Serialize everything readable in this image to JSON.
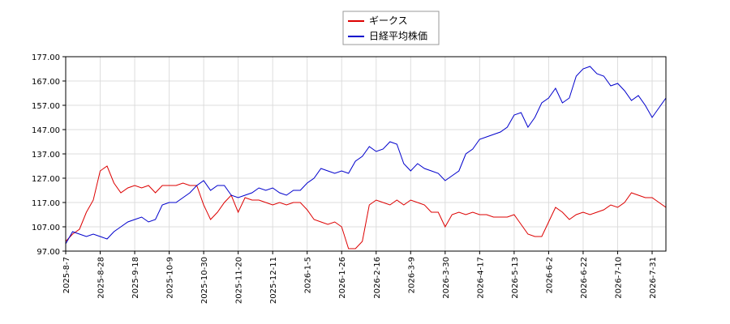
{
  "chart_data": {
    "type": "line",
    "categories": [
      "2025-8-7",
      null,
      null,
      null,
      null,
      "2025-8-28",
      null,
      null,
      null,
      null,
      "2025-9-18",
      null,
      null,
      null,
      null,
      "2025-10-9",
      null,
      null,
      null,
      null,
      "2025-10-30",
      null,
      null,
      null,
      null,
      "2025-11-20",
      null,
      null,
      null,
      null,
      "2025-12-11",
      null,
      null,
      null,
      null,
      "2026-1-5",
      null,
      null,
      null,
      null,
      "2026-1-26",
      null,
      null,
      null,
      null,
      "2026-2-16",
      null,
      null,
      null,
      null,
      "2026-3-9",
      null,
      null,
      null,
      null,
      "2026-3-30",
      null,
      null,
      null,
      null,
      "2026-4-17",
      null,
      null,
      null,
      null,
      "2026-5-13",
      null,
      null,
      null,
      null,
      "2026-6-2",
      null,
      null,
      null,
      null,
      "2026-6-22",
      null,
      null,
      null,
      null,
      "2026-7-10",
      null,
      null,
      null,
      null,
      "2026-7-31",
      null,
      null
    ],
    "series": [
      {
        "name": "ギークス",
        "color": "#dd0000",
        "values": [
          101,
          104,
          106,
          113,
          118,
          130,
          132,
          125,
          121,
          123,
          124,
          123,
          124,
          121,
          124,
          124,
          124,
          125,
          124,
          124,
          116,
          110,
          113,
          117,
          120,
          113,
          119,
          118,
          118,
          117,
          116,
          117,
          116,
          117,
          117,
          114,
          110,
          109,
          108,
          109,
          107,
          98,
          98,
          101,
          116,
          118,
          117,
          116,
          118,
          116,
          118,
          117,
          116,
          113,
          113,
          107,
          112,
          113,
          112,
          113,
          112,
          112,
          111,
          111,
          111,
          112,
          108,
          104,
          103,
          103,
          109,
          115,
          113,
          110,
          112,
          113,
          112,
          113,
          114,
          116,
          115,
          117,
          121,
          120,
          119,
          119,
          117,
          115
        ]
      },
      {
        "name": "日経平均株価",
        "color": "#0000cc",
        "values": [
          100,
          105,
          104,
          103,
          104,
          103,
          102,
          105,
          107,
          109,
          110,
          111,
          109,
          110,
          116,
          117,
          117,
          119,
          121,
          124,
          126,
          122,
          124,
          124,
          120,
          119,
          120,
          121,
          123,
          122,
          123,
          121,
          120,
          122,
          122,
          125,
          127,
          131,
          130,
          129,
          130,
          129,
          134,
          136,
          140,
          138,
          139,
          142,
          141,
          133,
          130,
          133,
          131,
          130,
          129,
          126,
          128,
          130,
          137,
          139,
          143,
          144,
          145,
          146,
          148,
          153,
          154,
          148,
          152,
          158,
          160,
          164,
          158,
          160,
          169,
          172,
          173,
          170,
          169,
          165,
          166,
          163,
          159,
          161,
          157,
          152,
          156,
          160
        ]
      }
    ],
    "ylim": [
      97,
      177
    ],
    "yticks": [
      {
        "value": 97,
        "label": "97.00"
      },
      {
        "value": 107,
        "label": "107.00"
      },
      {
        "value": 117,
        "label": "117.00"
      },
      {
        "value": 127,
        "label": "127.00"
      },
      {
        "value": 137,
        "label": "137.00"
      },
      {
        "value": 147,
        "label": "147.00"
      },
      {
        "value": 157,
        "label": "157.00"
      },
      {
        "value": 167,
        "label": "167.00"
      },
      {
        "value": 177,
        "label": "177.00"
      }
    ],
    "grid": true,
    "legend": "top"
  }
}
